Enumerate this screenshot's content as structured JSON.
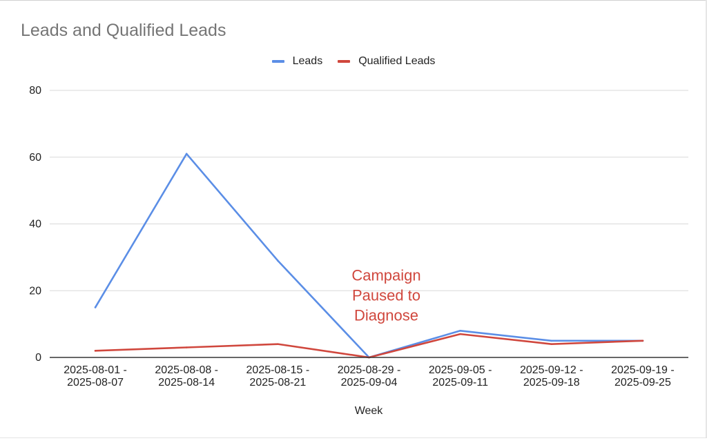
{
  "chart_data": {
    "type": "line",
    "title": "Leads and Qualified Leads",
    "xlabel": "Week",
    "ylabel": "",
    "ylim": [
      0,
      80
    ],
    "yticks": [
      "0",
      "20",
      "40",
      "60",
      "80"
    ],
    "grid": true,
    "legend_position": "top-center",
    "categories": [
      [
        "2025-08-01 -",
        "2025-08-07"
      ],
      [
        "2025-08-08 -",
        "2025-08-14"
      ],
      [
        "2025-08-15 -",
        "2025-08-21"
      ],
      [
        "2025-08-29 -",
        "2025-09-04"
      ],
      [
        "2025-09-05 -",
        "2025-09-11"
      ],
      [
        "2025-09-12 -",
        "2025-09-18"
      ],
      [
        "2025-09-19 -",
        "2025-09-25"
      ]
    ],
    "series": [
      {
        "name": "Leads",
        "color": "#5b8ee6",
        "values": [
          15,
          61,
          29,
          0,
          8,
          5,
          5
        ]
      },
      {
        "name": "Qualified Leads",
        "color": "#d0473d",
        "values": [
          2,
          3,
          4,
          0,
          7,
          4,
          5
        ]
      }
    ],
    "annotations": [
      {
        "lines": [
          "Campaign",
          "Paused to",
          "Diagnose"
        ],
        "category_index": 3,
        "value": 23,
        "color": "#d0473d"
      }
    ]
  }
}
